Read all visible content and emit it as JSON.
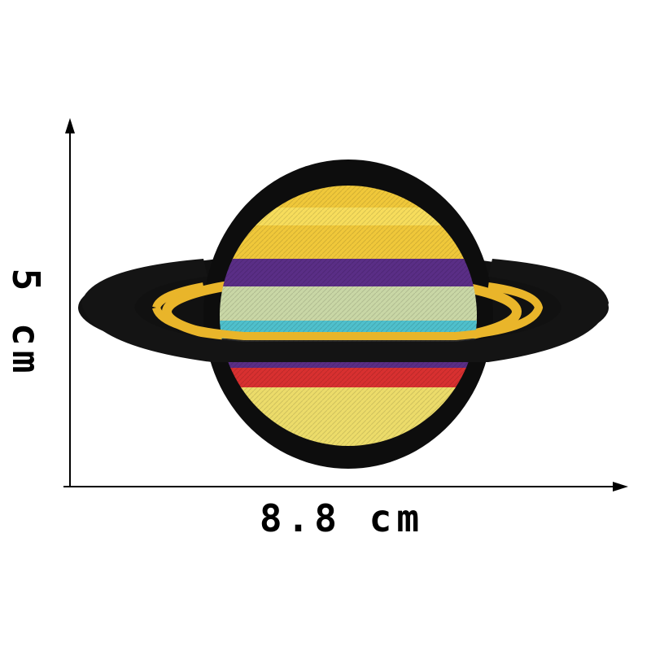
{
  "dimensions": {
    "width_label": "8.8 cm",
    "height_label": "5 cm"
  },
  "product": {
    "subject": "saturn-planet-patch-icon",
    "colors": {
      "border": "#0d0d0d",
      "ring": "#1a1a1a",
      "ring_inner": "#e9b52a",
      "band_yellow": "#f0c83a",
      "band_purple": "#5a2e86",
      "band_sage": "#c9d7a6",
      "band_teal": "#4fc0cc",
      "band_red": "#d83030",
      "band_lightyellow": "#ecdc6a"
    }
  }
}
